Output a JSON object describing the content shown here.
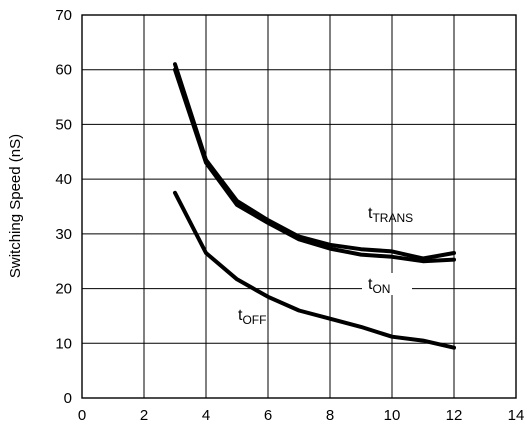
{
  "chart_data": {
    "type": "line",
    "title": "",
    "xlabel": "",
    "ylabel": "Switching Speed (nS)",
    "xlim": [
      0,
      14
    ],
    "ylim": [
      0,
      70
    ],
    "x_ticks": [
      0,
      2,
      4,
      6,
      8,
      10,
      12,
      14
    ],
    "y_ticks": [
      0,
      10,
      20,
      30,
      40,
      50,
      60,
      70
    ],
    "grid": true,
    "legend": "none",
    "series": [
      {
        "name": "tTRANS",
        "label_main": "t",
        "label_sub": "TRANS",
        "x": [
          3,
          4,
          5,
          6,
          7,
          8,
          9,
          10,
          11,
          12
        ],
        "y": [
          61,
          43.5,
          36,
          32.5,
          29.5,
          28,
          27.2,
          26.8,
          25.5,
          26.5
        ]
      },
      {
        "name": "tON",
        "label_main": "t",
        "label_sub": "ON",
        "x": [
          3,
          4,
          5,
          6,
          7,
          8,
          9,
          10,
          11,
          12
        ],
        "y": [
          60,
          43,
          35.3,
          32,
          29,
          27.3,
          26.2,
          25.8,
          25,
          25.3
        ]
      },
      {
        "name": "tOFF",
        "label_main": "t",
        "label_sub": "OFF",
        "x": [
          3,
          4,
          5,
          6,
          7,
          8,
          9,
          10,
          11,
          12
        ],
        "y": [
          37.5,
          26.5,
          21.7,
          18.5,
          16,
          14.5,
          13,
          11.2,
          10.5,
          9.2
        ]
      }
    ],
    "line_color": "#000000",
    "grid_color": "#000000"
  }
}
